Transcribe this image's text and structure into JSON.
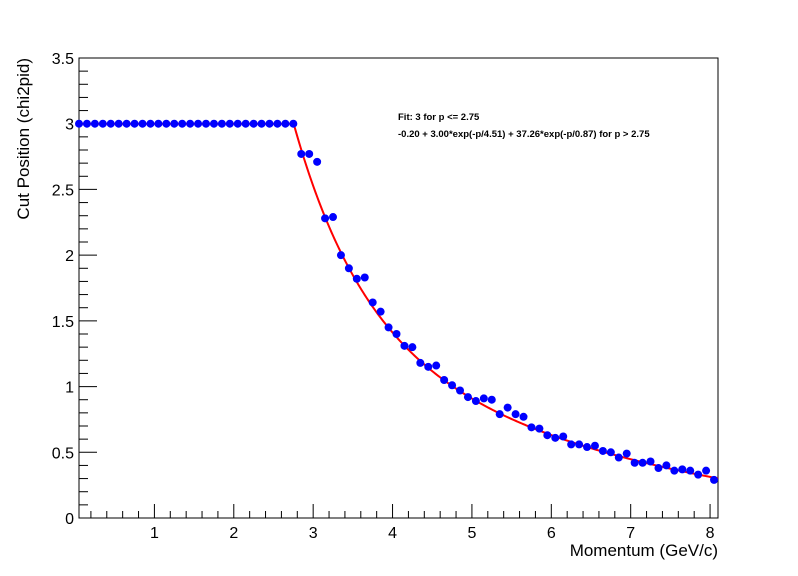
{
  "chart_data": {
    "type": "scatter",
    "xlabel": "Momentum (GeV/c)",
    "ylabel": "Cut Position (chi2pid)",
    "xlim": [
      0.05,
      8.1
    ],
    "ylim": [
      0,
      3.5
    ],
    "x_ticks": [
      1,
      2,
      3,
      4,
      5,
      6,
      7,
      8
    ],
    "x_tick_labels": [
      "1",
      "2",
      "3",
      "4",
      "5",
      "6",
      "7",
      "8"
    ],
    "y_ticks": [
      0,
      0.5,
      1,
      1.5,
      2,
      2.5,
      3,
      3.5
    ],
    "y_tick_labels": [
      "0",
      "0.5",
      "1",
      "1.5",
      "2",
      "2.5",
      "3",
      "3.5"
    ],
    "grid": false,
    "annotations": [
      "Fit: 3 for p <= 2.75",
      "-0.20 + 3.00*exp(-p/4.51) + 37.26*exp(-p/0.87) for p > 2.75"
    ],
    "colors": {
      "points": "#0000ff",
      "fit": "#ff0000"
    },
    "points": {
      "x": [
        0.05,
        0.15,
        0.25,
        0.35,
        0.45,
        0.55,
        0.65,
        0.75,
        0.85,
        0.95,
        1.05,
        1.15,
        1.25,
        1.35,
        1.45,
        1.55,
        1.65,
        1.75,
        1.85,
        1.95,
        2.05,
        2.15,
        2.25,
        2.35,
        2.45,
        2.55,
        2.65,
        2.75,
        2.85,
        2.95,
        3.05,
        3.15,
        3.25,
        3.35,
        3.45,
        3.55,
        3.65,
        3.75,
        3.85,
        3.95,
        4.05,
        4.15,
        4.25,
        4.35,
        4.45,
        4.55,
        4.65,
        4.75,
        4.85,
        4.95,
        5.05,
        5.15,
        5.25,
        5.35,
        5.45,
        5.55,
        5.65,
        5.75,
        5.85,
        5.95,
        6.05,
        6.15,
        6.25,
        6.35,
        6.45,
        6.55,
        6.65,
        6.75,
        6.85,
        6.95,
        7.05,
        7.15,
        7.25,
        7.35,
        7.45,
        7.55,
        7.65,
        7.75,
        7.85,
        7.95,
        8.05
      ],
      "y": [
        3,
        3,
        3,
        3,
        3,
        3,
        3,
        3,
        3,
        3,
        3,
        3,
        3,
        3,
        3,
        3,
        3,
        3,
        3,
        3,
        3,
        3,
        3,
        3,
        3,
        3,
        3,
        3,
        2.77,
        2.77,
        2.71,
        2.28,
        2.29,
        2.0,
        1.9,
        1.82,
        1.83,
        1.64,
        1.57,
        1.45,
        1.4,
        1.31,
        1.3,
        1.18,
        1.15,
        1.16,
        1.05,
        1.01,
        0.97,
        0.92,
        0.89,
        0.91,
        0.9,
        0.79,
        0.84,
        0.79,
        0.77,
        0.69,
        0.68,
        0.63,
        0.61,
        0.62,
        0.56,
        0.56,
        0.54,
        0.55,
        0.51,
        0.5,
        0.46,
        0.49,
        0.42,
        0.42,
        0.43,
        0.38,
        0.4,
        0.36,
        0.37,
        0.36,
        0.33,
        0.36,
        0.29
      ]
    },
    "fit": {
      "flat_value": 3,
      "threshold": 2.75,
      "params": {
        "c": -0.2,
        "a1": 3.0,
        "t1": 4.51,
        "a2": 37.26,
        "t2": 0.87
      }
    }
  }
}
